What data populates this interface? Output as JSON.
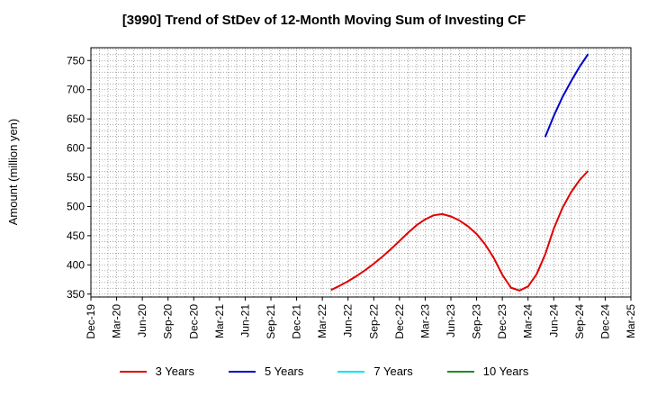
{
  "chart_data": {
    "type": "line",
    "title": "[3990]  Trend of StDev of 12-Month Moving Sum of Investing CF",
    "xlabel": "",
    "ylabel": "Amount (million yen)",
    "ylim": [
      345,
      772
    ],
    "yticks": [
      350,
      400,
      450,
      500,
      550,
      600,
      650,
      700,
      750
    ],
    "grid": true,
    "legend_position": "bottom",
    "categories": [
      "Dec-19",
      "Mar-20",
      "Jun-20",
      "Sep-20",
      "Dec-20",
      "Mar-21",
      "Jun-21",
      "Sep-21",
      "Dec-21",
      "Mar-22",
      "Jun-22",
      "Sep-22",
      "Dec-22",
      "Mar-23",
      "Jun-23",
      "Sep-23",
      "Dec-23",
      "Mar-24",
      "Jun-24",
      "Sep-24",
      "Dec-24",
      "Mar-25"
    ],
    "series": [
      {
        "name": "3 Years",
        "color": "#e00000",
        "points": [
          [
            "Apr-22",
            357
          ],
          [
            "May-22",
            364
          ],
          [
            "Jun-22",
            372
          ],
          [
            "Jul-22",
            381
          ],
          [
            "Aug-22",
            391
          ],
          [
            "Sep-22",
            402
          ],
          [
            "Oct-22",
            414
          ],
          [
            "Nov-22",
            427
          ],
          [
            "Dec-22",
            441
          ],
          [
            "Jan-23",
            455
          ],
          [
            "Feb-23",
            468
          ],
          [
            "Mar-23",
            478
          ],
          [
            "Apr-23",
            485
          ],
          [
            "May-23",
            487
          ],
          [
            "Jun-23",
            483
          ],
          [
            "Jul-23",
            476
          ],
          [
            "Aug-23",
            466
          ],
          [
            "Sep-23",
            453
          ],
          [
            "Oct-23",
            435
          ],
          [
            "Nov-23",
            412
          ],
          [
            "Dec-23",
            383
          ],
          [
            "Jan-24",
            361
          ],
          [
            "Feb-24",
            356
          ],
          [
            "Mar-24",
            363
          ],
          [
            "Apr-24",
            384
          ],
          [
            "May-24",
            418
          ],
          [
            "Jun-24",
            462
          ],
          [
            "Jul-24",
            497
          ],
          [
            "Aug-24",
            524
          ],
          [
            "Sep-24",
            545
          ],
          [
            "Oct-24",
            561
          ]
        ]
      },
      {
        "name": "5 Years",
        "color": "#0000cc",
        "points": [
          [
            "May-24",
            619
          ],
          [
            "Jun-24",
            655
          ],
          [
            "Jul-24",
            687
          ],
          [
            "Aug-24",
            714
          ],
          [
            "Sep-24",
            739
          ],
          [
            "Oct-24",
            761
          ]
        ]
      },
      {
        "name": "7 Years",
        "color": "#00e5ee",
        "points": []
      },
      {
        "name": "10 Years",
        "color": "#228b22",
        "points": []
      }
    ]
  }
}
